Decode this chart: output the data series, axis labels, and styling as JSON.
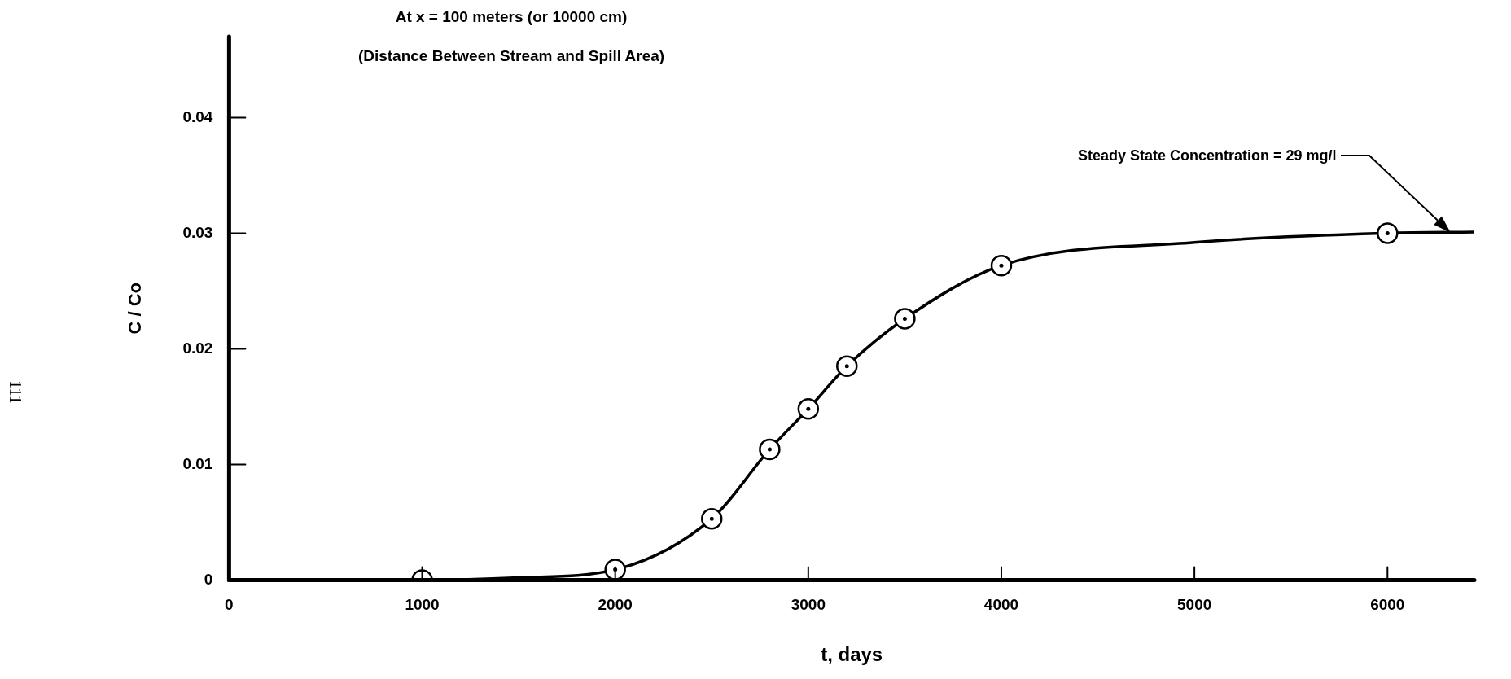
{
  "chart_data": {
    "type": "scatter",
    "title": "At x = 100 meters (or 10000 cm)",
    "subtitle": "(Distance Between Stream and Spill Area)",
    "xlabel": "t, days",
    "ylabel": "C / Co",
    "xlim": [
      0,
      6450
    ],
    "xticks": [
      0,
      1000,
      2000,
      3000,
      4000,
      5000,
      6000
    ],
    "ylim": [
      0,
      0.047
    ],
    "yticks": [
      0,
      0.01,
      0.02,
      0.03,
      0.04
    ],
    "grid": false,
    "legend": false,
    "marker": "circle",
    "series": [
      {
        "color": "#000000",
        "x": [
          1000,
          2000,
          2500,
          2800,
          3000,
          3200,
          3500,
          4000,
          6000
        ],
        "values": [
          0,
          0.0009,
          0.0053,
          0.0113,
          0.0148,
          0.0185,
          0.0226,
          0.0272,
          0.03
        ]
      },
      {
        "type": "line",
        "color": "#000000",
        "marker": "none",
        "line_style": "solid",
        "x": [
          0,
          1000,
          1500,
          2000,
          2500,
          2800,
          3000,
          3200,
          3500,
          4000,
          5000,
          6000,
          6450
        ],
        "values": [
          0,
          0,
          0.0002,
          0.0009,
          0.0053,
          0.0113,
          0.0148,
          0.0185,
          0.0226,
          0.0272,
          0.0292,
          0.03,
          0.0301
        ]
      }
    ],
    "annotations": [
      "Steady State Concentration = 29 mg/l",
      "111"
    ]
  }
}
